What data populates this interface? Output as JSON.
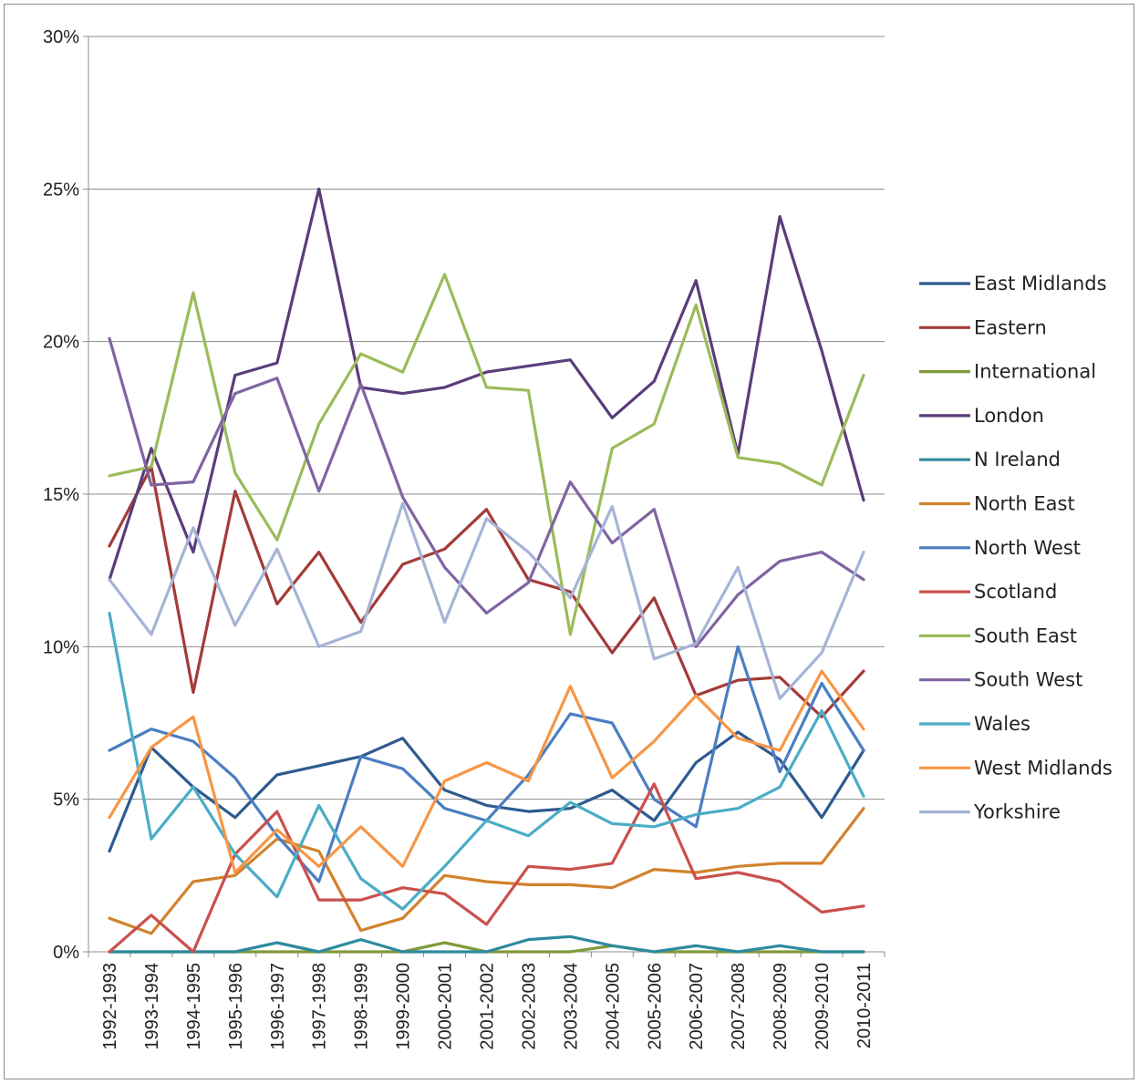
{
  "chart_data": {
    "type": "line",
    "title": "",
    "xlabel": "",
    "ylabel": "",
    "ylim": [
      0,
      30
    ],
    "yticks": [
      0,
      5,
      10,
      15,
      20,
      25,
      30
    ],
    "ytick_labels": [
      "0%",
      "5%",
      "10%",
      "15%",
      "20%",
      "25%",
      "30%"
    ],
    "grid": "horizontal",
    "legend_position": "right",
    "categories": [
      "1992-1993",
      "1993-1994",
      "1994-1995",
      "1995-1996",
      "1996-1997",
      "1997-1998",
      "1998-1999",
      "1999-2000",
      "2000-2001",
      "2001-2002",
      "2002-2003",
      "2003-2004",
      "2004-2005",
      "2005-2006",
      "2006-2007",
      "2007-2008",
      "2008-2009",
      "2009-2010",
      "2010-2011"
    ],
    "series": [
      {
        "name": "East Midlands",
        "color": "#2e5a8f",
        "values": [
          3.3,
          6.7,
          5.4,
          4.4,
          5.8,
          6.1,
          6.4,
          7.0,
          5.3,
          4.8,
          4.6,
          4.7,
          5.3,
          4.3,
          6.2,
          7.2,
          6.3,
          4.4,
          6.6
        ]
      },
      {
        "name": "Eastern",
        "color": "#a33b38",
        "values": [
          13.3,
          15.9,
          8.5,
          15.1,
          11.4,
          13.1,
          10.8,
          12.7,
          13.2,
          14.5,
          12.2,
          11.8,
          9.8,
          11.6,
          8.4,
          8.9,
          9.0,
          7.7,
          9.2
        ]
      },
      {
        "name": "International",
        "color": "#7f9a3a",
        "values": [
          0,
          0,
          0,
          0,
          0,
          0,
          0,
          0,
          0.3,
          0,
          0,
          0,
          0.2,
          0,
          0,
          0,
          0,
          0,
          0
        ]
      },
      {
        "name": "London",
        "color": "#5b3d7a",
        "values": [
          12.2,
          16.5,
          13.1,
          18.9,
          19.3,
          25.0,
          18.5,
          18.3,
          18.5,
          19.0,
          19.2,
          19.4,
          17.5,
          18.7,
          22.0,
          16.3,
          24.1,
          19.7,
          14.8
        ]
      },
      {
        "name": "N Ireland",
        "color": "#2e8a9e",
        "values": [
          0,
          0,
          0,
          0,
          0.3,
          0,
          0.4,
          0,
          0,
          0,
          0.4,
          0.5,
          0.2,
          0,
          0.2,
          0,
          0.2,
          0,
          0
        ]
      },
      {
        "name": "North East",
        "color": "#d1822d",
        "values": [
          1.1,
          0.6,
          2.3,
          2.5,
          3.7,
          3.3,
          0.7,
          1.1,
          2.5,
          2.3,
          2.2,
          2.2,
          2.1,
          2.7,
          2.6,
          2.8,
          2.9,
          2.9,
          4.7
        ]
      },
      {
        "name": "North West",
        "color": "#4a7ec1",
        "values": [
          6.6,
          7.3,
          6.9,
          5.7,
          3.8,
          2.3,
          6.4,
          6.0,
          4.7,
          4.3,
          5.8,
          7.8,
          7.5,
          5.0,
          4.1,
          10.0,
          5.9,
          8.8,
          6.6
        ]
      },
      {
        "name": "Scotland",
        "color": "#c9504d",
        "values": [
          0,
          1.2,
          0,
          3.2,
          4.6,
          1.7,
          1.7,
          2.1,
          1.9,
          0.9,
          2.8,
          2.7,
          2.9,
          5.5,
          2.4,
          2.6,
          2.3,
          1.3,
          1.5
        ]
      },
      {
        "name": "South East",
        "color": "#9bbb59",
        "values": [
          15.6,
          15.9,
          21.6,
          15.7,
          13.5,
          17.3,
          19.6,
          19.0,
          22.2,
          18.5,
          18.4,
          10.4,
          16.5,
          17.3,
          21.2,
          16.2,
          16.0,
          15.3,
          18.9
        ]
      },
      {
        "name": "South West",
        "color": "#8064a2",
        "values": [
          20.1,
          15.3,
          15.4,
          18.3,
          18.8,
          15.1,
          18.6,
          14.9,
          12.6,
          11.1,
          12.1,
          15.4,
          13.4,
          14.5,
          10.0,
          11.7,
          12.8,
          13.1,
          12.2
        ]
      },
      {
        "name": "Wales",
        "color": "#4bacc6",
        "values": [
          11.1,
          3.7,
          5.4,
          3.2,
          1.8,
          4.8,
          2.4,
          1.4,
          2.8,
          4.3,
          3.8,
          4.9,
          4.2,
          4.1,
          4.5,
          4.7,
          5.4,
          7.9,
          5.1
        ]
      },
      {
        "name": "West Midlands",
        "color": "#f79646",
        "values": [
          4.4,
          6.7,
          7.7,
          2.6,
          4.0,
          2.8,
          4.1,
          2.8,
          5.6,
          6.2,
          5.6,
          8.7,
          5.7,
          6.9,
          8.4,
          7.0,
          6.6,
          9.2,
          7.3
        ]
      },
      {
        "name": "Yorkshire",
        "color": "#a5b4d6",
        "values": [
          12.2,
          10.4,
          13.9,
          10.7,
          13.2,
          10.0,
          10.5,
          14.7,
          10.8,
          14.2,
          13.1,
          11.6,
          14.6,
          9.6,
          10.1,
          12.6,
          8.3,
          9.8,
          13.1
        ]
      }
    ]
  }
}
